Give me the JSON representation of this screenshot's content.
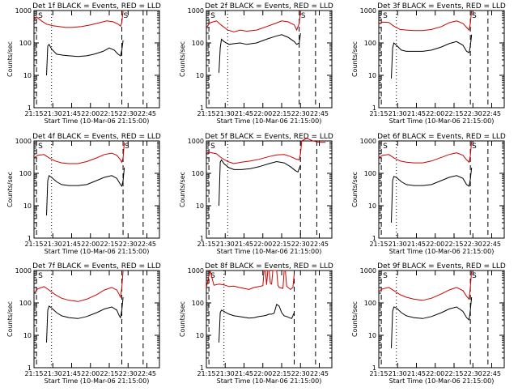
{
  "chart_data": [
    {
      "type": "line",
      "title": "Det 1f BLACK = Events, RED = LLD",
      "xlabel": "Start Time (10-Mar-06 21:15:00)",
      "ylabel": "Counts/sec",
      "x_ticks": [
        "21:15",
        "21:30",
        "21:45",
        "22:00",
        "22:15",
        "22:30",
        "22:45"
      ],
      "y_ticks": [
        "1",
        "10",
        "100",
        "1000"
      ],
      "ylim": [
        1,
        1000
      ],
      "y_scale": "log",
      "xlim_minutes": [
        0,
        100
      ],
      "markers": {
        "dashed": [
          2,
          70,
          87
        ],
        "dotted": [
          14
        ]
      },
      "corner_labels": [
        "S",
        "S"
      ],
      "series": [
        {
          "color": "#cc0000",
          "x": [
            0,
            2,
            6,
            10,
            15,
            20,
            25,
            30,
            38,
            45,
            52,
            58,
            63,
            67,
            69,
            70,
            71
          ],
          "y": [
            520,
            640,
            480,
            380,
            340,
            320,
            300,
            300,
            320,
            360,
            420,
            480,
            450,
            380,
            330,
            420,
            1000
          ]
        },
        {
          "color": "#000000",
          "x": [
            10,
            11,
            12,
            14,
            18,
            23,
            28,
            35,
            42,
            48,
            55,
            60,
            64,
            67,
            69,
            70,
            71
          ],
          "y": [
            10,
            80,
            90,
            65,
            45,
            42,
            40,
            38,
            40,
            45,
            55,
            70,
            60,
            45,
            40,
            60,
            120
          ]
        }
      ]
    },
    {
      "type": "line",
      "title": "Det 2f BLACK = Events, RED = LLD",
      "xlabel": "Start Time (10-Mar-06 21:15:00)",
      "ylabel": "Counts/sec",
      "x_ticks": [
        "21:15",
        "21:30",
        "21:45",
        "22:00",
        "22:15",
        "22:30",
        "22:45"
      ],
      "y_ticks": [
        "1",
        "10",
        "100",
        "1000"
      ],
      "ylim": [
        1,
        1000
      ],
      "y_scale": "log",
      "xlim_minutes": [
        0,
        100
      ],
      "markers": {
        "dashed": [
          2,
          74,
          87
        ],
        "dotted": [
          17
        ]
      },
      "corner_labels": [
        "S",
        "S"
      ],
      "series": [
        {
          "color": "#cc0000",
          "x": [
            0,
            3,
            8,
            12,
            17,
            22,
            27,
            32,
            40,
            48,
            55,
            60,
            65,
            70,
            72,
            74,
            75
          ],
          "y": [
            300,
            420,
            480,
            350,
            250,
            220,
            250,
            230,
            250,
            320,
            400,
            480,
            450,
            360,
            250,
            400,
            1000
          ]
        },
        {
          "color": "#000000",
          "x": [
            10,
            11,
            12,
            14,
            18,
            22,
            27,
            32,
            40,
            48,
            55,
            60,
            65,
            70,
            72,
            74,
            75
          ],
          "y": [
            12,
            70,
            130,
            110,
            90,
            95,
            100,
            90,
            100,
            130,
            160,
            180,
            150,
            110,
            90,
            100,
            200
          ]
        }
      ]
    },
    {
      "type": "line",
      "title": "Det 3f BLACK = Events, RED = LLD",
      "xlabel": "Start Time (10-Mar-06 21:15:00)",
      "ylabel": "Counts/sec",
      "x_ticks": [
        "21:15",
        "21:30",
        "21:45",
        "22:00",
        "22:15",
        "22:30",
        "22:45"
      ],
      "y_ticks": [
        "1",
        "10",
        "100",
        "1000"
      ],
      "ylim": [
        1,
        1000
      ],
      "y_scale": "log",
      "xlim_minutes": [
        0,
        100
      ],
      "markers": {
        "dashed": [
          2,
          73,
          87
        ],
        "dotted": [
          14
        ]
      },
      "corner_labels": [
        "S",
        "S"
      ],
      "series": [
        {
          "color": "#cc0000",
          "x": [
            0,
            3,
            8,
            12,
            17,
            22,
            28,
            35,
            42,
            50,
            56,
            62,
            67,
            70,
            72,
            73,
            74
          ],
          "y": [
            380,
            440,
            430,
            330,
            260,
            250,
            240,
            240,
            260,
            320,
            420,
            480,
            400,
            300,
            250,
            400,
            1000
          ]
        },
        {
          "color": "#000000",
          "x": [
            10,
            11,
            12,
            14,
            18,
            22,
            28,
            35,
            42,
            50,
            56,
            62,
            67,
            70,
            72,
            73,
            74
          ],
          "y": [
            8,
            70,
            100,
            85,
            60,
            55,
            55,
            55,
            60,
            75,
            95,
            110,
            85,
            55,
            50,
            80,
            180
          ]
        }
      ]
    },
    {
      "type": "line",
      "title": "Det 4f BLACK = Events, RED = LLD",
      "xlabel": "Start Time (10-Mar-06 21:15:00)",
      "ylabel": "Counts/sec",
      "x_ticks": [
        "21:15",
        "21:30",
        "21:45",
        "22:00",
        "22:15",
        "22:30",
        "22:45"
      ],
      "y_ticks": [
        "1",
        "10",
        "100",
        "1000"
      ],
      "ylim": [
        1,
        1000
      ],
      "y_scale": "log",
      "xlim_minutes": [
        0,
        100
      ],
      "markers": {
        "dashed": [
          2,
          71,
          87
        ],
        "dotted": [
          14
        ]
      },
      "corner_labels": [
        "S",
        "S"
      ],
      "series": [
        {
          "color": "#cc0000",
          "x": [
            0,
            3,
            8,
            12,
            17,
            22,
            28,
            35,
            42,
            50,
            56,
            62,
            66,
            69,
            70,
            71,
            72
          ],
          "y": [
            300,
            360,
            380,
            300,
            240,
            210,
            200,
            200,
            230,
            300,
            380,
            420,
            360,
            260,
            220,
            300,
            900
          ]
        },
        {
          "color": "#000000",
          "x": [
            10,
            11,
            12,
            14,
            18,
            22,
            28,
            35,
            42,
            50,
            56,
            62,
            66,
            69,
            70,
            71,
            72
          ],
          "y": [
            5,
            60,
            85,
            75,
            55,
            45,
            42,
            42,
            45,
            60,
            75,
            85,
            70,
            45,
            40,
            60,
            150
          ]
        }
      ]
    },
    {
      "type": "line",
      "title": "Det 5f BLACK = Events, RED = LLD",
      "xlabel": "Start Time (10-Mar-06 21:15:00)",
      "ylabel": "Counts/sec",
      "x_ticks": [
        "21:15",
        "21:30",
        "21:45",
        "22:00",
        "22:15",
        "22:30",
        "22:45"
      ],
      "y_ticks": [
        "1",
        "10",
        "100",
        "1000"
      ],
      "ylim": [
        1,
        1000
      ],
      "y_scale": "log",
      "xlim_minutes": [
        0,
        100
      ],
      "markers": {
        "dashed": [
          2,
          75,
          88
        ],
        "dotted": [
          17
        ]
      },
      "corner_labels": [
        "S"
      ],
      "series": [
        {
          "color": "#cc0000",
          "x": [
            0,
            2,
            8,
            12,
            17,
            22,
            28,
            35,
            42,
            50,
            56,
            62,
            67,
            71,
            74,
            75,
            76,
            80,
            85,
            90,
            95
          ],
          "y": [
            420,
            450,
            400,
            300,
            230,
            200,
            220,
            240,
            270,
            330,
            370,
            380,
            330,
            280,
            260,
            400,
            1000,
            1200,
            1000,
            900,
            900
          ]
        },
        {
          "color": "#000000",
          "x": [
            10,
            11,
            12,
            14,
            18,
            22,
            28,
            35,
            42,
            50,
            56,
            62,
            67,
            71,
            73,
            75
          ],
          "y": [
            10,
            220,
            260,
            200,
            150,
            130,
            130,
            140,
            160,
            200,
            230,
            210,
            160,
            120,
            110,
            180
          ]
        }
      ]
    },
    {
      "type": "line",
      "title": "Det 6f BLACK = Events, RED = LLD",
      "xlabel": "Start Time (10-Mar-06 21:15:00)",
      "ylabel": "Counts/sec",
      "x_ticks": [
        "21:15",
        "21:30",
        "21:45",
        "22:00",
        "22:15",
        "22:30",
        "22:45"
      ],
      "y_ticks": [
        "1",
        "10",
        "100",
        "1000"
      ],
      "ylim": [
        1,
        1000
      ],
      "y_scale": "log",
      "xlim_minutes": [
        0,
        100
      ],
      "markers": {
        "dashed": [
          2,
          73,
          87
        ],
        "dotted": [
          14
        ]
      },
      "corner_labels": [
        "S",
        "S"
      ],
      "series": [
        {
          "color": "#cc0000",
          "x": [
            0,
            3,
            8,
            12,
            17,
            22,
            28,
            35,
            42,
            50,
            56,
            62,
            67,
            70,
            72,
            73,
            74
          ],
          "y": [
            300,
            360,
            380,
            300,
            240,
            220,
            210,
            210,
            240,
            310,
            380,
            430,
            360,
            260,
            220,
            350,
            1000
          ]
        },
        {
          "color": "#000000",
          "x": [
            10,
            11,
            12,
            14,
            18,
            22,
            28,
            35,
            42,
            50,
            56,
            62,
            67,
            70,
            72,
            73,
            74
          ],
          "y": [
            3,
            60,
            80,
            75,
            55,
            45,
            42,
            42,
            45,
            60,
            75,
            85,
            70,
            45,
            40,
            65,
            150
          ]
        }
      ]
    },
    {
      "type": "line",
      "title": "Det 7f BLACK = Events, RED = LLD",
      "xlabel": "Start Time (10-Mar-06 21:15:00)",
      "ylabel": "Counts/sec",
      "x_ticks": [
        "21:15",
        "21:30",
        "21:45",
        "22:00",
        "22:15",
        "22:30",
        "22:45"
      ],
      "y_ticks": [
        "1",
        "10",
        "100",
        "1000"
      ],
      "ylim": [
        1,
        1000
      ],
      "y_scale": "log",
      "xlim_minutes": [
        0,
        100
      ],
      "markers": {
        "dashed": [
          2,
          70,
          87
        ],
        "dotted": [
          14
        ]
      },
      "corner_labels": [
        "S"
      ],
      "series": [
        {
          "color": "#cc0000",
          "x": [
            0,
            3,
            8,
            12,
            17,
            22,
            28,
            35,
            42,
            50,
            56,
            62,
            66,
            68,
            69,
            70,
            71
          ],
          "y": [
            200,
            270,
            320,
            250,
            180,
            140,
            120,
            110,
            130,
            180,
            250,
            300,
            250,
            180,
            150,
            300,
            1000
          ]
        },
        {
          "color": "#000000",
          "x": [
            10,
            11,
            12,
            14,
            18,
            22,
            28,
            35,
            42,
            50,
            56,
            62,
            66,
            68,
            69,
            70,
            71
          ],
          "y": [
            6,
            60,
            80,
            70,
            50,
            40,
            35,
            33,
            38,
            50,
            65,
            75,
            60,
            40,
            35,
            60,
            150
          ]
        }
      ]
    },
    {
      "type": "line",
      "title": "Det 8f BLACK = Events, RED = LLD",
      "xlabel": "Start Time (10-Mar-06 21:15:00)",
      "ylabel": "Counts/sec",
      "x_ticks": [
        "21:15",
        "21:30",
        "21:45",
        "22:00",
        "22:15",
        "22:30",
        "22:45"
      ],
      "y_ticks": [
        "1",
        "10",
        "100",
        "1000"
      ],
      "ylim": [
        1,
        1000
      ],
      "y_scale": "log",
      "xlim_minutes": [
        0,
        100
      ],
      "markers": {
        "dashed": [
          2,
          70,
          87
        ],
        "dotted": [
          14
        ]
      },
      "corner_labels": [
        "S"
      ],
      "series": [
        {
          "color": "#cc0000",
          "x": [
            0,
            3,
            6,
            10,
            14,
            18,
            22,
            26,
            30,
            34,
            38,
            42,
            45,
            46,
            47,
            48,
            49,
            50,
            51,
            52,
            53,
            56,
            57,
            58,
            61,
            62,
            63,
            64,
            65,
            67,
            69,
            70
          ],
          "y": [
            300,
            1000,
            350,
            380,
            360,
            320,
            330,
            300,
            280,
            260,
            300,
            320,
            340,
            1000,
            1000,
            360,
            1000,
            1000,
            400,
            380,
            1000,
            1000,
            350,
            300,
            280,
            1000,
            1000,
            330,
            300,
            260,
            300,
            800
          ]
        },
        {
          "color": "#000000",
          "x": [
            10,
            11,
            12,
            14,
            18,
            22,
            26,
            30,
            34,
            38,
            42,
            46,
            48,
            50,
            52,
            54,
            56,
            58,
            60,
            62,
            64,
            66,
            68,
            70
          ],
          "y": [
            6,
            50,
            60,
            55,
            45,
            40,
            38,
            36,
            34,
            35,
            38,
            40,
            42,
            45,
            45,
            48,
            90,
            80,
            50,
            40,
            38,
            35,
            33,
            50
          ]
        }
      ]
    },
    {
      "type": "line",
      "title": "Det 9f BLACK = Events, RED = LLD",
      "xlabel": "Start Time (10-Mar-06 21:15:00)",
      "ylabel": "Counts/sec",
      "x_ticks": [
        "21:15",
        "21:30",
        "21:45",
        "22:00",
        "22:15",
        "22:30",
        "22:45"
      ],
      "y_ticks": [
        "1",
        "10",
        "100",
        "1000"
      ],
      "ylim": [
        1,
        1000
      ],
      "y_scale": "log",
      "xlim_minutes": [
        0,
        100
      ],
      "markers": {
        "dashed": [
          2,
          73,
          87
        ],
        "dotted": [
          14
        ]
      },
      "corner_labels": [
        "S",
        "S"
      ],
      "series": [
        {
          "color": "#cc0000",
          "x": [
            0,
            3,
            8,
            12,
            17,
            22,
            28,
            35,
            42,
            50,
            56,
            62,
            67,
            70,
            72,
            73,
            74
          ],
          "y": [
            220,
            270,
            300,
            240,
            180,
            150,
            130,
            120,
            140,
            190,
            250,
            300,
            240,
            160,
            130,
            300,
            1000
          ]
        },
        {
          "color": "#000000",
          "x": [
            10,
            11,
            12,
            14,
            18,
            22,
            28,
            35,
            42,
            50,
            56,
            62,
            67,
            70,
            72,
            73,
            74
          ],
          "y": [
            4,
            55,
            75,
            70,
            50,
            40,
            35,
            33,
            38,
            50,
            65,
            75,
            55,
            35,
            30,
            60,
            150
          ]
        }
      ]
    }
  ]
}
